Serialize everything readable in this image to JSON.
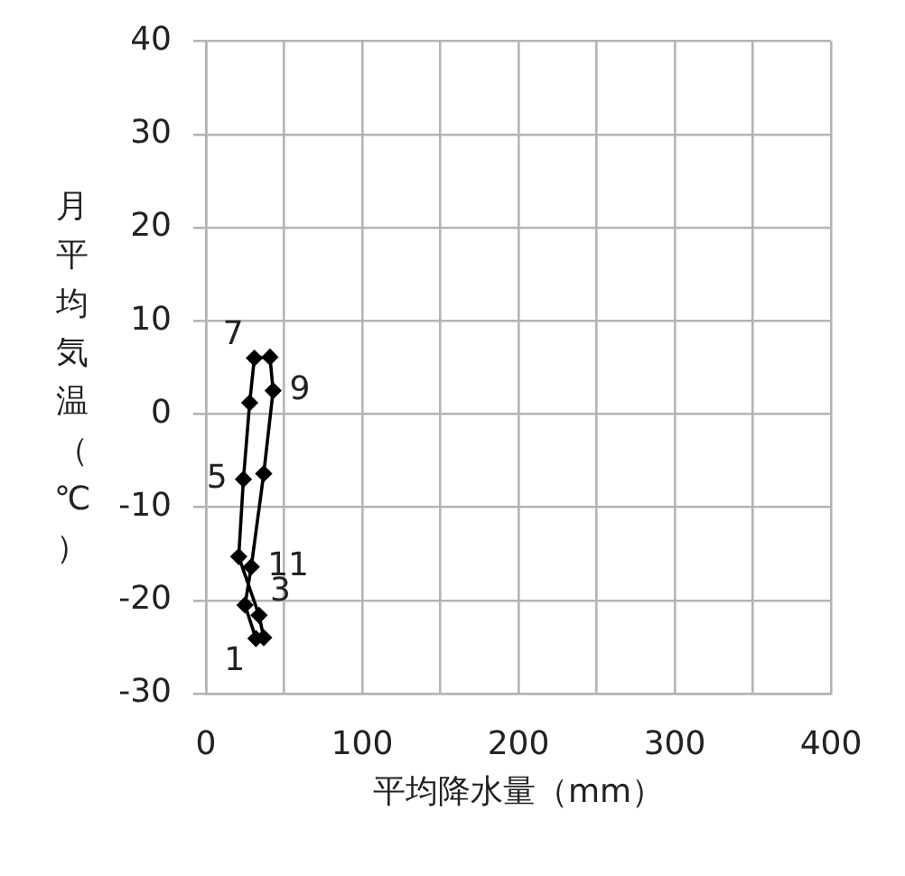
{
  "chart_data": {
    "type": "line",
    "xlabel": "平均降水量（mm）",
    "ylabel": "月平均気温（℃）",
    "series": [
      {
        "color": "#000000",
        "x": [
          32,
          37,
          34,
          21,
          24,
          28,
          31,
          41,
          43,
          37,
          29,
          25
        ],
        "values": [
          -24.1,
          -24.0,
          -21.6,
          -15.3,
          -7.0,
          1.2,
          6.0,
          6.1,
          2.5,
          -6.4,
          -16.4,
          -20.5
        ]
      },
      {
        "color": "#000000",
        "marker": "none",
        "x": [
          25,
          32
        ],
        "values": [
          -20.5,
          -24.1
        ]
      }
    ],
    "xlim": [
      0,
      400
    ],
    "xticks": [
      0,
      {
        "value": 50,
        "label": null
      },
      100,
      {
        "value": 150,
        "label": null
      },
      200,
      {
        "value": 250,
        "label": null
      },
      300,
      {
        "value": 350,
        "label": null
      },
      400
    ],
    "ylim": [
      -30,
      40
    ],
    "yticks": [
      -30,
      -20,
      -10,
      0,
      10,
      20,
      30,
      40
    ],
    "grid": true,
    "legend": false,
    "marker": "diamond",
    "line_style": "solid",
    "annotations": [
      {
        "text": "7",
        "x": 31,
        "y": 6.0
      },
      {
        "text": "9",
        "x": 43,
        "y": 2.5
      },
      {
        "text": "5",
        "x": 24,
        "y": -7.0
      },
      {
        "text": "11",
        "x": 29,
        "y": -16.4
      },
      {
        "text": "3",
        "x": 34,
        "y": -21.6
      },
      {
        "text": "1",
        "x": 32,
        "y": -24.1
      }
    ]
  }
}
